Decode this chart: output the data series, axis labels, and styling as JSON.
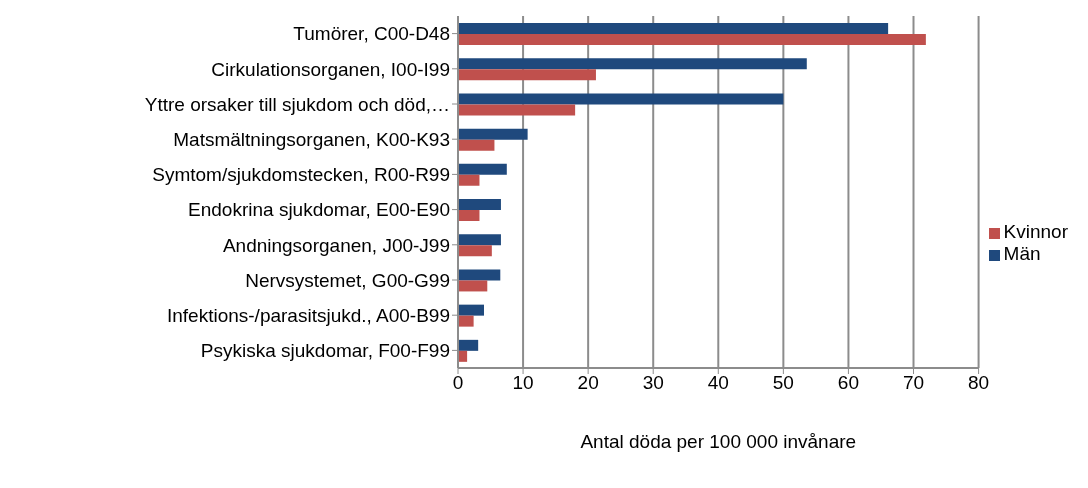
{
  "chart_data": {
    "type": "bar",
    "orientation": "horizontal",
    "xlabel": "Antal döda per 100 000 invånare",
    "categories": [
      "Tumörer, C00-D48",
      "Cirkulationsorganen, I00-I99",
      "Yttre orsaker till sjukdom och död,…",
      "Matsmältningsorganen, K00-K93",
      "Symtom/sjukdomstecken, R00-R99",
      "Endokrina sjukdomar, E00-E90",
      "Andningsorganen, J00-J99",
      "Nervsystemet, G00-G99",
      "Infektions-/parasitsjukd., A00-B99",
      "Psykiska sjukdomar, F00-F99"
    ],
    "series": [
      {
        "name": "Män",
        "color": "#1f497d",
        "values": [
          66.1,
          53.6,
          50.0,
          10.7,
          7.5,
          6.6,
          6.6,
          6.5,
          4.0,
          3.1
        ]
      },
      {
        "name": "Kvinnor",
        "color": "#c0504d",
        "values": [
          71.9,
          21.2,
          18.0,
          5.6,
          3.3,
          3.3,
          5.2,
          4.5,
          2.4,
          1.4
        ]
      }
    ],
    "xlim": [
      0,
      80
    ],
    "xticks": [
      0,
      10,
      20,
      30,
      40,
      50,
      60,
      70,
      80
    ],
    "grid": "x",
    "legend": "right"
  }
}
